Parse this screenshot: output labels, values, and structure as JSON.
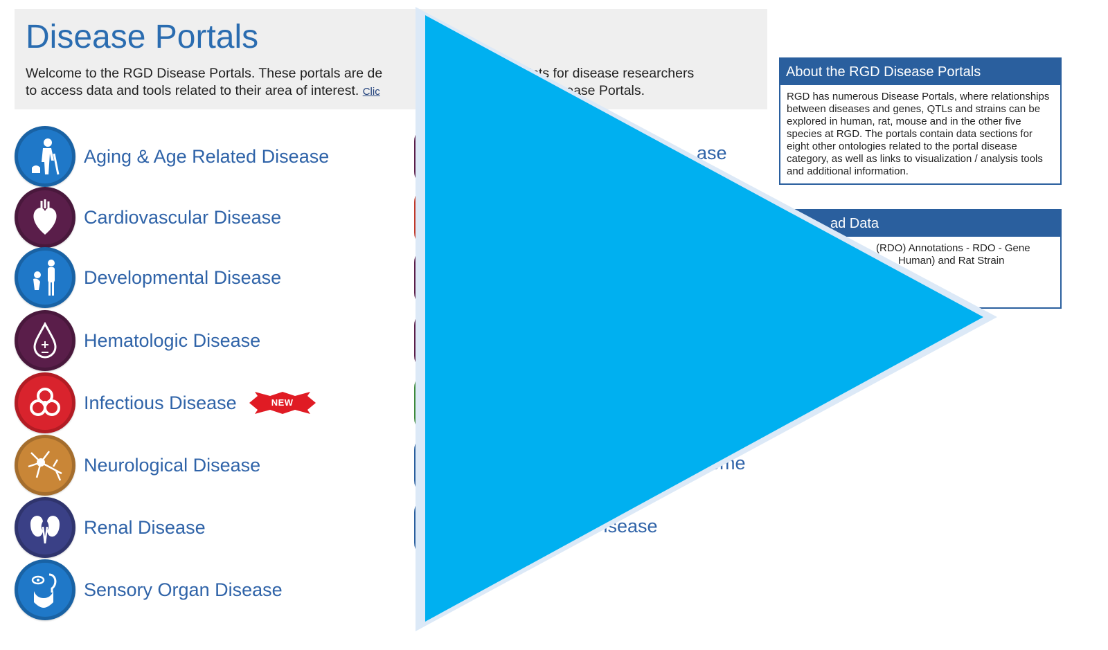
{
  "header": {
    "title": "Disease Portals",
    "intro_line1": "Welcome to the RGD Disease Portals. These portals are de",
    "intro_line1_tail": "points for disease researchers",
    "intro_line2": "to access data and tools related to their area of interest.",
    "click_link": "Clic",
    "intro_line2_tail": "D Disease Portals."
  },
  "portals_left": [
    {
      "label": "Aging & Age Related Disease",
      "icon": "elderly-person-icon",
      "color": "#1f78c8"
    },
    {
      "label": "Cardiovascular Disease",
      "icon": "heart-icon",
      "color": "#5a1e4a"
    },
    {
      "label": "Developmental Disease",
      "icon": "child-development-icon",
      "color": "#1f78c8"
    },
    {
      "label": "Hematologic Disease",
      "icon": "blood-drop-icon",
      "color": "#5a1e4a"
    },
    {
      "label": "Infectious Disease",
      "icon": "biohazard-icon",
      "color": "#d9232d",
      "badge": "NEW"
    },
    {
      "label": "Neurological Disease",
      "icon": "neuron-icon",
      "color": "#c98637"
    },
    {
      "label": "Renal Disease",
      "icon": "kidney-icon",
      "color": "#3a4086"
    },
    {
      "label": "Sensory Organ Disease",
      "icon": "sensory-organs-icon",
      "color": "#1f78c8"
    }
  ],
  "portals_right_visible": [
    {
      "label": "ase",
      "color": "#5a1e4a"
    },
    {
      "label": "",
      "color": "#c0392b"
    },
    {
      "label": "",
      "color": "#5a1e4a"
    },
    {
      "label": "",
      "color": "#5a1e4a"
    },
    {
      "label": "",
      "color": "#3d8a3d"
    },
    {
      "label": "ome",
      "color": "#2a5f9e"
    },
    {
      "label": "Disease",
      "color": "#2a5f9e"
    }
  ],
  "about_box": {
    "title": "About the RGD Disease Portals",
    "body": "RGD has numerous Disease Portals, where relationships between diseases and genes, QTLs and strains can be explored in human, rat, mouse and in the other five species at RGD. The portals contain data sections for eight other ontologies related to the portal disease category, as well as links to visualization / analysis tools and additional information."
  },
  "download_box": {
    "title": "ad Data",
    "line1": "(RDO) Annotations - RDO - Gene",
    "line2": "Human) and Rat Strain"
  },
  "overlay": {
    "icon": "play-icon",
    "color": "#00b0f0"
  }
}
